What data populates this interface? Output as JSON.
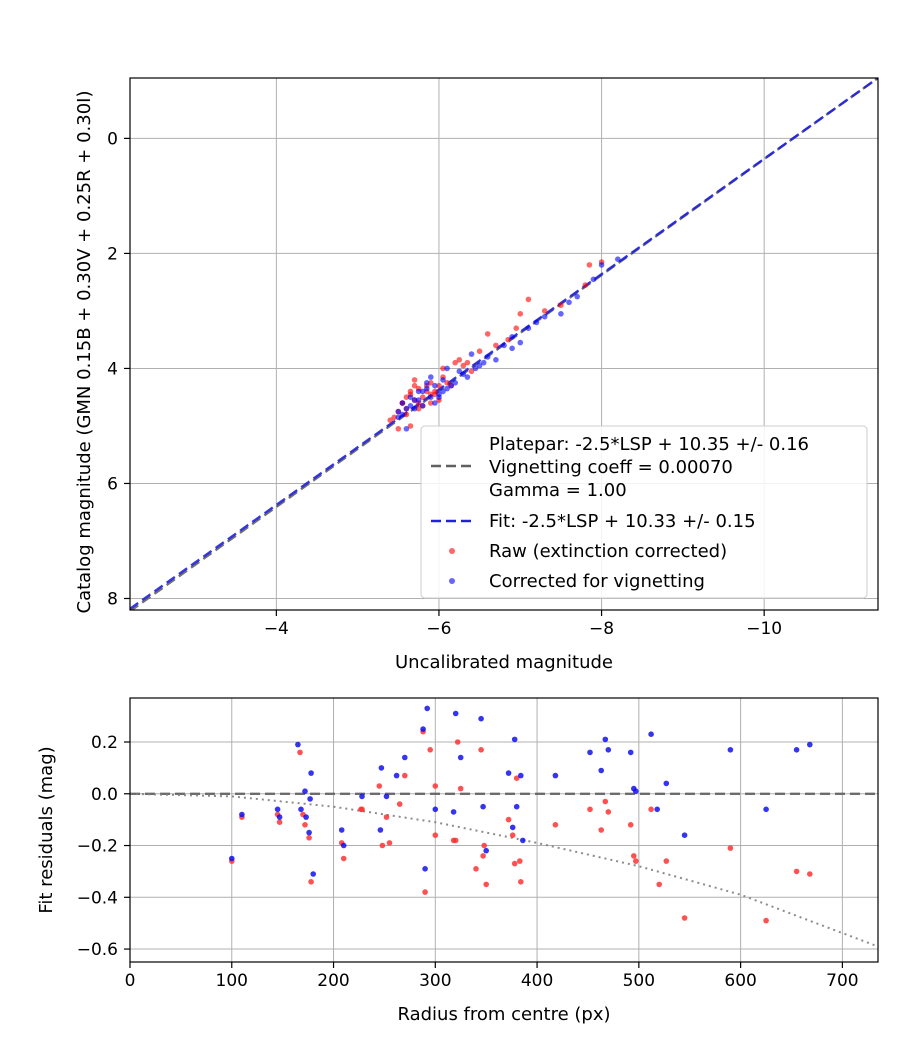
{
  "chart_data": [
    {
      "type": "scatter",
      "title": "",
      "xlabel": "Uncalibrated magnitude",
      "ylabel": "Catalog magnitude (GMN 0.15B + 0.30V + 0.25R + 0.30I)",
      "xlim": [
        -2.2,
        -11.4
      ],
      "ylim": [
        8.2,
        -1.05
      ],
      "xticks": [
        -4,
        -6,
        -8,
        -10
      ],
      "xtick_labels": [
        "−4",
        "−6",
        "−8",
        "−10"
      ],
      "yticks": [
        0,
        2,
        4,
        6,
        8
      ],
      "ytick_labels": [
        "0",
        "2",
        "4",
        "6",
        "8"
      ],
      "grid": true,
      "legend_position": "lower-right",
      "legend": [
        "Platepar: -2.5*LSP + 10.35 +/- 0.16",
        "Vignetting coeff = 0.00070",
        "Gamma = 1.00",
        "Fit: -2.5*LSP + 10.33 +/- 0.15",
        "Raw (extinction corrected)",
        "Corrected for vignetting"
      ],
      "lines": [
        {
          "name": "Platepar",
          "x": [
            -2.2,
            -11.4
          ],
          "y": [
            8.22,
            -1.05
          ],
          "color": "#606060",
          "dash": "dashed"
        },
        {
          "name": "Fit",
          "x": [
            -2.2,
            -11.4
          ],
          "y": [
            8.18,
            -1.05
          ],
          "color": "#2222dd",
          "dash": "dashed"
        }
      ],
      "series": [
        {
          "name": "Raw (extinction corrected)",
          "color": "#ff0000",
          "x": [
            -5.4,
            -5.5,
            -5.55,
            -5.6,
            -5.6,
            -5.65,
            -5.7,
            -5.7,
            -5.75,
            -5.8,
            -5.8,
            -5.85,
            -5.9,
            -5.9,
            -5.95,
            -6.0,
            -6.0,
            -6.05,
            -6.1,
            -6.15,
            -6.2,
            -5.6,
            -5.65,
            -5.7,
            -5.75,
            -5.85,
            -5.95,
            -6.05,
            -6.25,
            -6.3,
            -6.4,
            -6.5,
            -6.6,
            -6.7,
            -6.85,
            -6.95,
            -7.0,
            -7.1,
            -7.3,
            -7.5,
            -7.8,
            -7.85,
            -8.0,
            -5.55,
            -5.65,
            -5.75,
            -5.5,
            -6.35,
            -5.45,
            -5.9
          ],
          "y": [
            4.9,
            4.75,
            4.6,
            4.5,
            4.7,
            4.4,
            4.55,
            4.2,
            4.35,
            4.5,
            4.65,
            4.3,
            4.45,
            4.25,
            4.4,
            4.3,
            4.55,
            4.15,
            4.25,
            4.3,
            3.9,
            4.8,
            5.0,
            4.3,
            4.6,
            4.4,
            4.45,
            4.0,
            3.85,
            3.95,
            4.05,
            3.7,
            3.4,
            3.6,
            3.5,
            3.3,
            3.05,
            2.8,
            3.0,
            2.9,
            2.55,
            2.2,
            2.15,
            4.6,
            4.45,
            4.7,
            5.05,
            3.9,
            4.85,
            4.6
          ]
        },
        {
          "name": "Corrected for vignetting",
          "color": "#0000ff",
          "x": [
            -5.5,
            -5.55,
            -5.6,
            -5.65,
            -5.7,
            -5.75,
            -5.8,
            -5.85,
            -5.9,
            -5.95,
            -6.0,
            -6.05,
            -6.1,
            -6.2,
            -6.3,
            -6.35,
            -6.5,
            -6.6,
            -6.7,
            -6.8,
            -6.9,
            -7.0,
            -7.1,
            -7.2,
            -7.5,
            -7.6,
            -7.9,
            -8.0,
            -5.55,
            -5.65,
            -5.75,
            -5.85,
            -5.95,
            -6.05,
            -6.15,
            -6.25,
            -6.45,
            -6.55,
            -5.6,
            -5.7,
            -5.8,
            -6.0,
            -6.4,
            -6.9,
            -7.3,
            -7.7,
            -8.2,
            -5.5,
            -5.9,
            -6.1
          ],
          "y": [
            4.75,
            4.6,
            4.7,
            4.5,
            4.55,
            4.4,
            4.65,
            4.35,
            4.5,
            4.3,
            4.45,
            4.2,
            4.35,
            4.25,
            4.1,
            4.15,
            3.95,
            3.8,
            3.85,
            3.6,
            3.45,
            3.55,
            3.3,
            3.2,
            3.05,
            2.85,
            2.45,
            2.2,
            4.8,
            4.65,
            4.55,
            4.25,
            4.6,
            4.4,
            4.3,
            4.05,
            4.0,
            3.9,
            5.05,
            4.7,
            4.4,
            4.5,
            3.75,
            3.65,
            3.1,
            2.75,
            2.1,
            4.85,
            4.15,
            4.0
          ]
        }
      ]
    },
    {
      "type": "scatter",
      "title": "",
      "xlabel": "Radius from centre (px)",
      "ylabel": "Fit residuals (mag)",
      "xlim": [
        0,
        735
      ],
      "ylim": [
        -0.65,
        0.37
      ],
      "xticks": [
        0,
        100,
        200,
        300,
        400,
        500,
        600,
        700
      ],
      "xtick_labels": [
        "0",
        "100",
        "200",
        "300",
        "400",
        "500",
        "600",
        "700"
      ],
      "yticks": [
        0.2,
        0.0,
        -0.2,
        -0.4,
        -0.6
      ],
      "ytick_labels": [
        "0.2",
        "0.0",
        "−0.2",
        "−0.4",
        "−0.6"
      ],
      "grid": true,
      "lines": [
        {
          "name": "zero",
          "x": [
            0,
            735
          ],
          "y": [
            0,
            0
          ],
          "color": "#606060",
          "dash": "dashed"
        },
        {
          "name": "vignetting",
          "x": [
            0,
            100,
            200,
            300,
            400,
            500,
            600,
            735
          ],
          "y": [
            0.0,
            -0.01,
            -0.05,
            -0.11,
            -0.19,
            -0.28,
            -0.39,
            -0.59
          ],
          "color": "#808080",
          "dash": "dotted"
        }
      ],
      "series": [
        {
          "name": "Raw (extinction corrected)",
          "color": "#ff0000",
          "x": [
            100,
            110,
            145,
            147,
            167,
            170,
            172,
            176,
            178,
            208,
            210,
            227,
            228,
            245,
            248,
            252,
            255,
            265,
            270,
            288,
            290,
            295,
            300,
            300,
            318,
            320,
            322,
            325,
            340,
            345,
            347,
            348,
            350,
            372,
            376,
            378,
            380,
            383,
            384,
            418,
            452,
            463,
            467,
            470,
            492,
            495,
            497,
            512,
            520,
            527,
            545,
            590,
            625,
            655,
            668
          ],
          "y": [
            -0.26,
            -0.09,
            -0.08,
            -0.11,
            0.16,
            -0.08,
            -0.12,
            -0.17,
            -0.34,
            -0.19,
            -0.25,
            -0.06,
            -0.06,
            0.03,
            -0.2,
            -0.09,
            -0.19,
            -0.04,
            0.07,
            0.24,
            -0.38,
            0.17,
            -0.16,
            0.03,
            -0.18,
            -0.18,
            0.2,
            0.02,
            -0.29,
            0.17,
            -0.24,
            -0.2,
            -0.35,
            -0.1,
            -0.16,
            -0.27,
            0.06,
            -0.26,
            -0.34,
            -0.12,
            -0.06,
            -0.14,
            -0.03,
            -0.07,
            -0.12,
            -0.24,
            -0.26,
            -0.06,
            -0.35,
            -0.26,
            -0.48,
            -0.21,
            -0.49,
            -0.3,
            -0.31
          ],
          "fill": "#ff3333"
        },
        {
          "name": "Corrected for vignetting",
          "color": "#0000ff",
          "x": [
            100,
            110,
            145,
            147,
            165,
            168,
            172,
            173,
            176,
            177,
            178,
            180,
            208,
            210,
            228,
            247,
            246,
            252,
            262,
            270,
            288,
            290,
            292,
            300,
            318,
            320,
            325,
            345,
            347,
            350,
            372,
            376,
            378,
            380,
            384,
            386,
            418,
            452,
            463,
            467,
            470,
            492,
            495,
            497,
            512,
            518,
            527,
            545,
            590,
            625,
            655,
            668
          ],
          "y": [
            -0.25,
            -0.08,
            -0.06,
            -0.09,
            0.19,
            -0.06,
            0.01,
            -0.09,
            -0.15,
            -0.02,
            0.08,
            -0.31,
            -0.14,
            -0.2,
            -0.01,
            0.1,
            -0.14,
            -0.01,
            0.07,
            0.14,
            0.25,
            -0.29,
            0.33,
            -0.06,
            -0.07,
            0.31,
            0.14,
            0.29,
            -0.05,
            -0.22,
            0.08,
            -0.13,
            0.21,
            -0.05,
            0.07,
            -0.18,
            0.07,
            0.16,
            0.09,
            0.21,
            0.17,
            0.16,
            0.02,
            0.01,
            0.23,
            -0.06,
            0.04,
            -0.16,
            0.17,
            -0.06,
            0.17,
            0.19
          ],
          "fill": "#1010ee"
        }
      ]
    }
  ]
}
